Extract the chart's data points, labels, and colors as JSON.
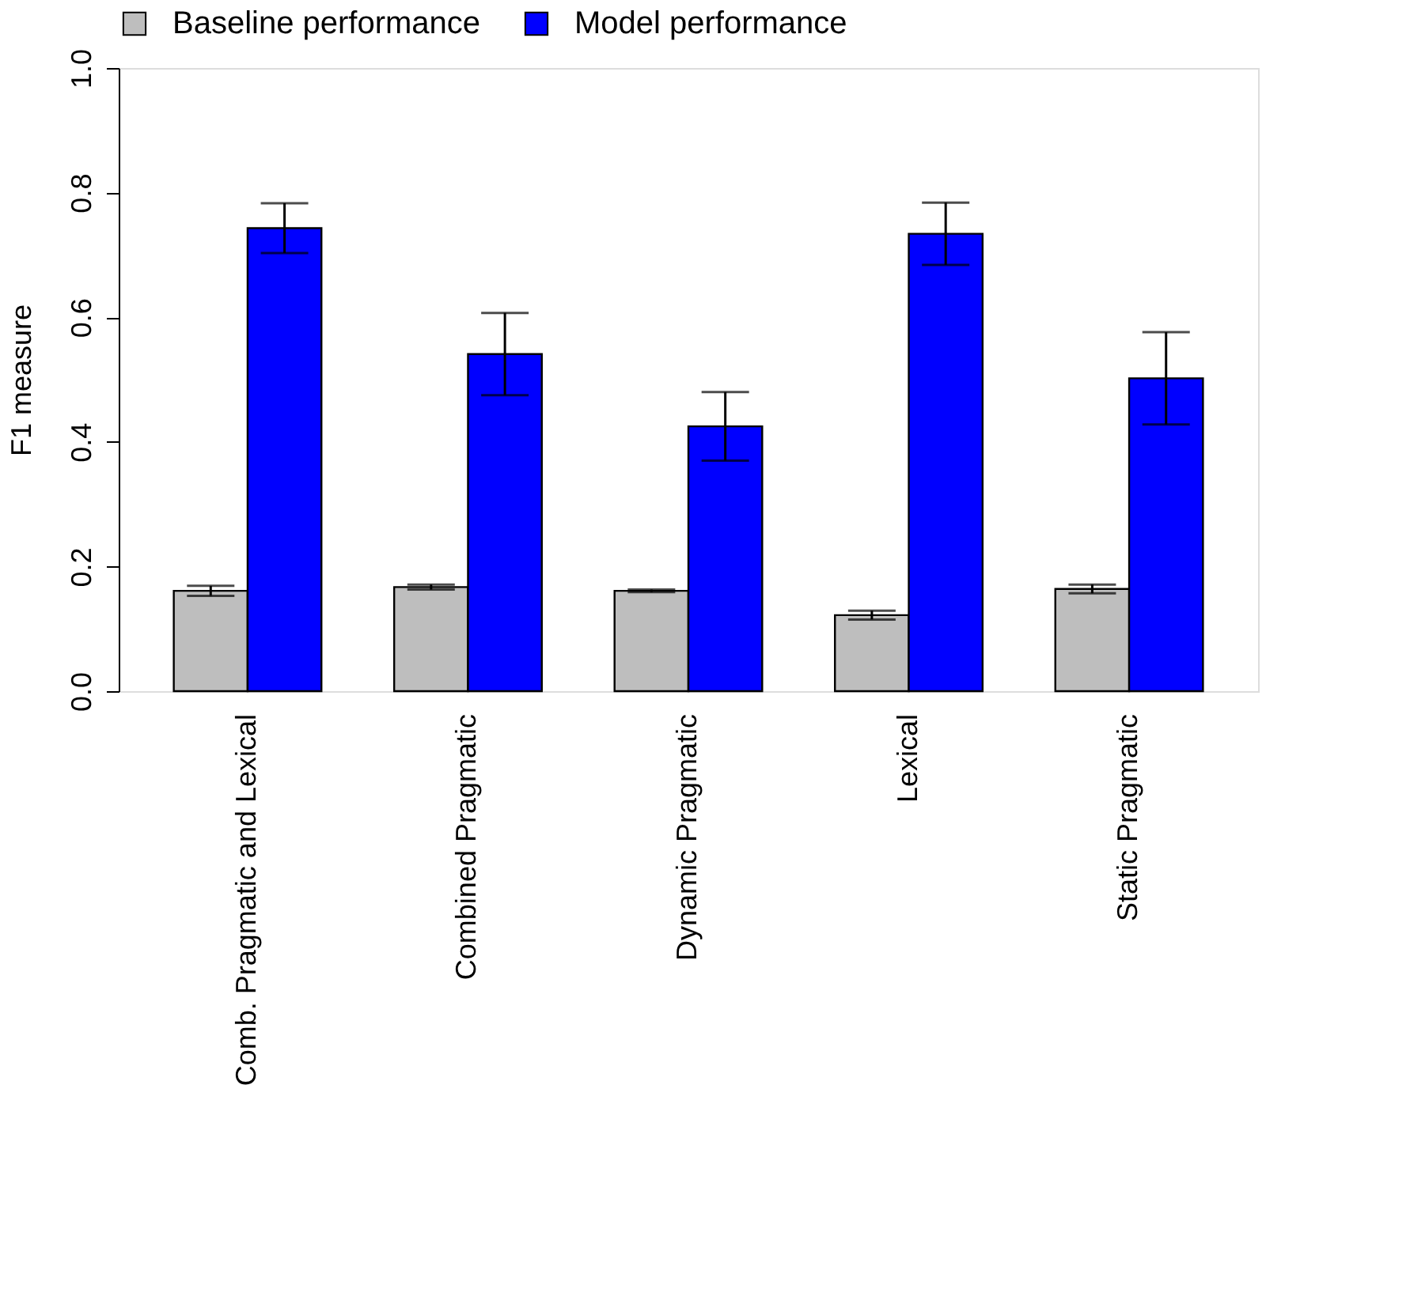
{
  "chart_data": {
    "type": "bar",
    "ylabel": "F1 measure",
    "categories": [
      "Comb. Pragmatic and Lexical",
      "Combined Pragmatic",
      "Dynamic Pragmatic",
      "Lexical",
      "Static Pragmatic"
    ],
    "series": [
      {
        "name": "Baseline performance",
        "color": "#bebebe",
        "values": [
          0.161,
          0.167,
          0.161,
          0.122,
          0.164
        ],
        "errors": [
          0.008,
          0.004,
          0.002,
          0.007,
          0.007
        ]
      },
      {
        "name": "Model performance",
        "color": "#0000ff",
        "values": [
          0.743,
          0.541,
          0.425,
          0.734,
          0.502
        ],
        "errors": [
          0.04,
          0.066,
          0.055,
          0.05,
          0.074
        ]
      }
    ],
    "ylim": [
      0,
      1
    ],
    "yticks": [
      {
        "value": 0,
        "label": "0.0"
      },
      {
        "value": 0.2,
        "label": "0.2"
      },
      {
        "value": 0.4,
        "label": "0.4"
      },
      {
        "value": 0.6,
        "label": "0.6"
      },
      {
        "value": 0.8,
        "label": "0.8"
      },
      {
        "value": 1,
        "label": "1.0"
      }
    ],
    "grid": false,
    "legend": "top"
  }
}
